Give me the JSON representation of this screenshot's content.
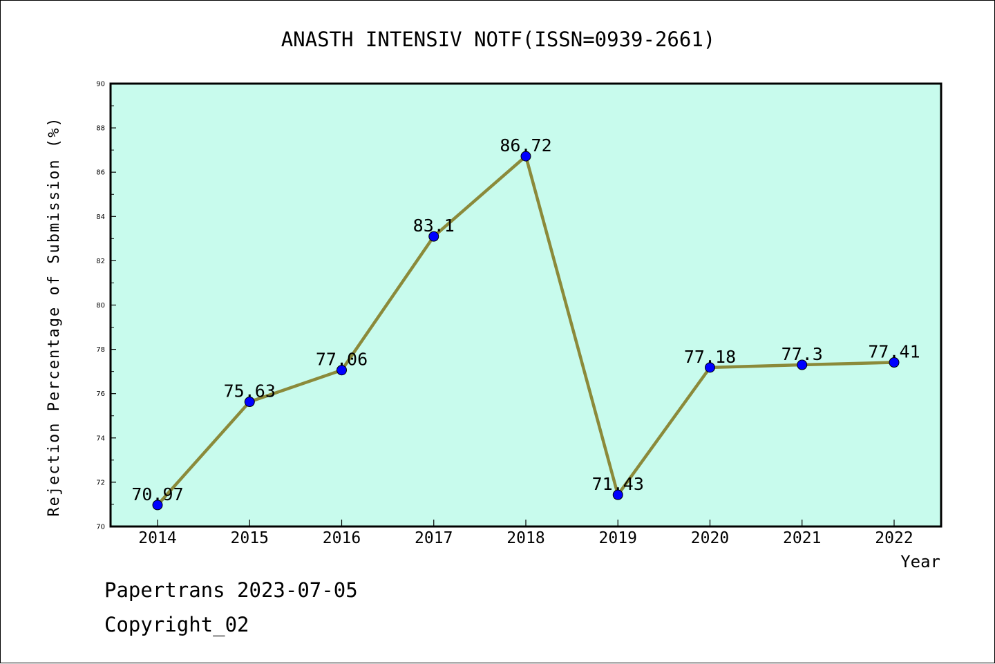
{
  "chart_data": {
    "type": "line",
    "title": "ANASTH INTENSIV NOTF(ISSN=0939-2661)",
    "xlabel": "Year",
    "ylabel": "Rejection Percentage of Submission (%)",
    "categories": [
      "2014",
      "2015",
      "2016",
      "2017",
      "2018",
      "2019",
      "2020",
      "2021",
      "2022"
    ],
    "series": [
      {
        "values": [
          70.97,
          75.63,
          77.06,
          83.1,
          86.72,
          71.43,
          77.18,
          77.3,
          77.41
        ],
        "data_labels": [
          "70.97",
          "75.63",
          "77.06",
          "83.1",
          "86.72",
          "71.43",
          "77.18",
          "77.3",
          "77.41"
        ]
      }
    ],
    "ylim": [
      70,
      90
    ],
    "yticks": [
      "70",
      "72",
      "74",
      "76",
      "78",
      "80",
      "82",
      "84",
      "86",
      "88",
      "90"
    ],
    "grid": false,
    "colors": {
      "plot_background": "#c8fbed",
      "line": "#8b8a3a",
      "marker": "#0000ff"
    }
  },
  "footer": {
    "line1": "Papertrans 2023-07-05",
    "line2": "Copyright_02"
  }
}
